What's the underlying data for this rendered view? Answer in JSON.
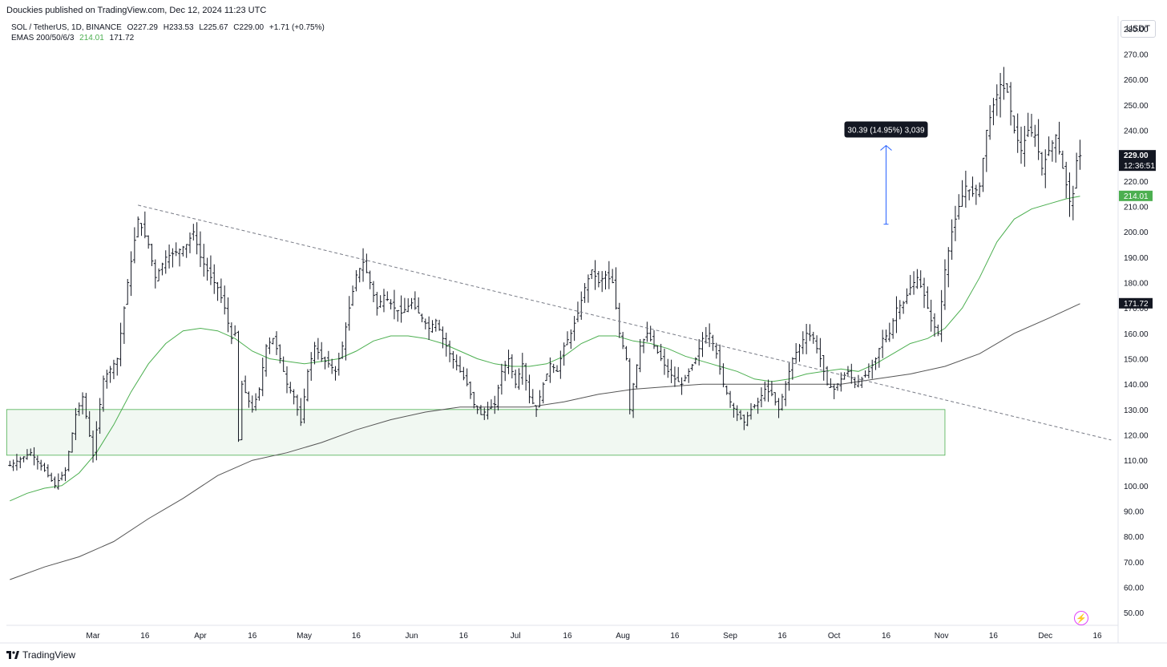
{
  "header": {
    "published_text": "Douckies published on TradingView.com, Dec 12, 2024 11:23 UTC"
  },
  "legend": {
    "symbol": "SOL / TetherUS, 1D, BINANCE",
    "open": "O227.29",
    "high": "H233.53",
    "low": "L225.67",
    "close": "C229.00",
    "change": "+1.71 (+0.75%)",
    "indicator": "EMAS 200/50/6/3",
    "ema_fast_value": "214.01",
    "ema_slow_value": "171.72"
  },
  "currency_button": "USDT",
  "price_labels": {
    "last_price": "229.00",
    "countdown": "12:36:51",
    "ema_fast": "214.01",
    "ema_slow": "171.72"
  },
  "measure_label": "30.39 (14.95%) 3,039",
  "footer": {
    "brand": "TradingView"
  },
  "colors": {
    "candle": "#131722",
    "ema_fast": "#4caf50",
    "ema_slow": "#555555",
    "zone_stroke": "#4caf50",
    "zone_fill": "#f1f8f2",
    "trendline": "#787b86",
    "measure_arrow": "#2962ff",
    "last_price_bg": "#131722",
    "ema_fast_bg": "#4caf50",
    "ema_slow_bg": "#131722"
  },
  "chart_data": {
    "type": "ohlc",
    "title": "SOL / TetherUS, 1D, BINANCE",
    "y_axis": {
      "min": 45,
      "max": 285,
      "ticks": [
        50,
        60,
        70,
        80,
        90,
        100,
        110,
        120,
        130,
        140,
        150,
        160,
        170,
        180,
        190,
        200,
        210,
        220,
        230,
        240,
        250,
        260,
        270,
        280
      ]
    },
    "x_axis": {
      "ticks": [
        {
          "label": "Mar",
          "index": 24
        },
        {
          "label": "16",
          "index": 39
        },
        {
          "label": "Apr",
          "index": 55
        },
        {
          "label": "16",
          "index": 70
        },
        {
          "label": "May",
          "index": 85
        },
        {
          "label": "16",
          "index": 100
        },
        {
          "label": "Jun",
          "index": 116
        },
        {
          "label": "16",
          "index": 131
        },
        {
          "label": "Jul",
          "index": 146
        },
        {
          "label": "16",
          "index": 161
        },
        {
          "label": "Aug",
          "index": 177
        },
        {
          "label": "16",
          "index": 192
        },
        {
          "label": "Sep",
          "index": 208
        },
        {
          "label": "16",
          "index": 223
        },
        {
          "label": "Oct",
          "index": 238
        },
        {
          "label": "16",
          "index": 253
        },
        {
          "label": "Nov",
          "index": 269
        },
        {
          "label": "16",
          "index": 284
        },
        {
          "label": "Dec",
          "index": 299
        },
        {
          "label": "16",
          "index": 314
        }
      ]
    },
    "close_path": [
      [
        0,
        108
      ],
      [
        6,
        113
      ],
      [
        10,
        106
      ],
      [
        13,
        100
      ],
      [
        16,
        106
      ],
      [
        19,
        128
      ],
      [
        21,
        135
      ],
      [
        24,
        112
      ],
      [
        27,
        142
      ],
      [
        31,
        150
      ],
      [
        34,
        180
      ],
      [
        37,
        205
      ],
      [
        40,
        195
      ],
      [
        42,
        182
      ],
      [
        45,
        190
      ],
      [
        48,
        192
      ],
      [
        51,
        195
      ],
      [
        53,
        200
      ],
      [
        55,
        190
      ],
      [
        58,
        182
      ],
      [
        60,
        178
      ],
      [
        62,
        170
      ],
      [
        64,
        158
      ],
      [
        65,
        160
      ],
      [
        66,
        118
      ],
      [
        67,
        140
      ],
      [
        70,
        130
      ],
      [
        72,
        138
      ],
      [
        74,
        155
      ],
      [
        76,
        158
      ],
      [
        78,
        150
      ],
      [
        80,
        140
      ],
      [
        82,
        135
      ],
      [
        84,
        125
      ],
      [
        86,
        145
      ],
      [
        88,
        155
      ],
      [
        90,
        150
      ],
      [
        92,
        148
      ],
      [
        94,
        145
      ],
      [
        96,
        155
      ],
      [
        98,
        170
      ],
      [
        100,
        183
      ],
      [
        102,
        188
      ],
      [
        104,
        180
      ],
      [
        106,
        170
      ],
      [
        108,
        175
      ],
      [
        111,
        170
      ],
      [
        113,
        168
      ],
      [
        116,
        172
      ],
      [
        118,
        168
      ],
      [
        121,
        162
      ],
      [
        123,
        165
      ],
      [
        125,
        158
      ],
      [
        127,
        152
      ],
      [
        130,
        145
      ],
      [
        132,
        140
      ],
      [
        134,
        132
      ],
      [
        136,
        128
      ],
      [
        138,
        130
      ],
      [
        140,
        132
      ],
      [
        142,
        145
      ],
      [
        144,
        150
      ],
      [
        146,
        140
      ],
      [
        148,
        148
      ],
      [
        150,
        135
      ],
      [
        152,
        130
      ],
      [
        154,
        140
      ],
      [
        156,
        148
      ],
      [
        158,
        145
      ],
      [
        160,
        155
      ],
      [
        162,
        160
      ],
      [
        164,
        168
      ],
      [
        166,
        178
      ],
      [
        168,
        185
      ],
      [
        170,
        180
      ],
      [
        172,
        183
      ],
      [
        174,
        180
      ],
      [
        176,
        160
      ],
      [
        178,
        150
      ],
      [
        179,
        130
      ],
      [
        180,
        140
      ],
      [
        182,
        155
      ],
      [
        184,
        160
      ],
      [
        186,
        155
      ],
      [
        188,
        150
      ],
      [
        190,
        145
      ],
      [
        192,
        142
      ],
      [
        194,
        140
      ],
      [
        196,
        145
      ],
      [
        198,
        150
      ],
      [
        200,
        158
      ],
      [
        202,
        160
      ],
      [
        204,
        152
      ],
      [
        206,
        140
      ],
      [
        208,
        133
      ],
      [
        210,
        128
      ],
      [
        212,
        125
      ],
      [
        214,
        130
      ],
      [
        216,
        133
      ],
      [
        218,
        138
      ],
      [
        220,
        136
      ],
      [
        222,
        130
      ],
      [
        224,
        140
      ],
      [
        226,
        150
      ],
      [
        228,
        155
      ],
      [
        230,
        160
      ],
      [
        232,
        158
      ],
      [
        234,
        150
      ],
      [
        236,
        140
      ],
      [
        238,
        138
      ],
      [
        240,
        142
      ],
      [
        242,
        145
      ],
      [
        244,
        140
      ],
      [
        246,
        142
      ],
      [
        248,
        145
      ],
      [
        250,
        150
      ],
      [
        252,
        158
      ],
      [
        254,
        160
      ],
      [
        256,
        170
      ],
      [
        258,
        172
      ],
      [
        260,
        178
      ],
      [
        262,
        182
      ],
      [
        264,
        175
      ],
      [
        266,
        165
      ],
      [
        268,
        160
      ],
      [
        270,
        185
      ],
      [
        272,
        200
      ],
      [
        274,
        210
      ],
      [
        276,
        218
      ],
      [
        278,
        215
      ],
      [
        280,
        218
      ],
      [
        282,
        240
      ],
      [
        284,
        250
      ],
      [
        286,
        258
      ],
      [
        288,
        255
      ],
      [
        290,
        240
      ],
      [
        292,
        232
      ],
      [
        294,
        240
      ],
      [
        296,
        238
      ],
      [
        298,
        225
      ],
      [
        300,
        232
      ],
      [
        302,
        238
      ],
      [
        304,
        225
      ],
      [
        306,
        212
      ],
      [
        307,
        215
      ],
      [
        308,
        228
      ],
      [
        309,
        230
      ]
    ],
    "ema_fast": {
      "name": "EMA",
      "points": [
        [
          0,
          94
        ],
        [
          5,
          97
        ],
        [
          10,
          99
        ],
        [
          15,
          100
        ],
        [
          20,
          105
        ],
        [
          25,
          113
        ],
        [
          30,
          124
        ],
        [
          35,
          137
        ],
        [
          40,
          148
        ],
        [
          45,
          156
        ],
        [
          50,
          161
        ],
        [
          55,
          162
        ],
        [
          60,
          161
        ],
        [
          65,
          158
        ],
        [
          70,
          153
        ],
        [
          75,
          150
        ],
        [
          80,
          149
        ],
        [
          85,
          148
        ],
        [
          90,
          149
        ],
        [
          95,
          150
        ],
        [
          100,
          153
        ],
        [
          105,
          157
        ],
        [
          110,
          159
        ],
        [
          115,
          159
        ],
        [
          120,
          158
        ],
        [
          125,
          156
        ],
        [
          130,
          153
        ],
        [
          135,
          150
        ],
        [
          140,
          148
        ],
        [
          145,
          147
        ],
        [
          150,
          147
        ],
        [
          155,
          148
        ],
        [
          160,
          151
        ],
        [
          165,
          156
        ],
        [
          170,
          159
        ],
        [
          175,
          159
        ],
        [
          180,
          157
        ],
        [
          185,
          156
        ],
        [
          190,
          154
        ],
        [
          195,
          151
        ],
        [
          200,
          149
        ],
        [
          205,
          147
        ],
        [
          210,
          145
        ],
        [
          215,
          142
        ],
        [
          220,
          141
        ],
        [
          225,
          142
        ],
        [
          230,
          144
        ],
        [
          235,
          145
        ],
        [
          240,
          146
        ],
        [
          245,
          145
        ],
        [
          250,
          148
        ],
        [
          255,
          152
        ],
        [
          260,
          156
        ],
        [
          265,
          158
        ],
        [
          270,
          162
        ],
        [
          275,
          170
        ],
        [
          280,
          182
        ],
        [
          285,
          196
        ],
        [
          290,
          205
        ],
        [
          295,
          209
        ],
        [
          300,
          211
        ],
        [
          305,
          213
        ],
        [
          309,
          214
        ]
      ]
    },
    "ema_slow": {
      "name": "EMA",
      "points": [
        [
          0,
          63
        ],
        [
          10,
          68
        ],
        [
          20,
          72
        ],
        [
          30,
          78
        ],
        [
          40,
          87
        ],
        [
          50,
          95
        ],
        [
          60,
          104
        ],
        [
          70,
          110
        ],
        [
          80,
          113
        ],
        [
          90,
          117
        ],
        [
          100,
          122
        ],
        [
          110,
          126
        ],
        [
          120,
          129
        ],
        [
          130,
          131
        ],
        [
          140,
          131
        ],
        [
          150,
          131
        ],
        [
          160,
          133
        ],
        [
          170,
          136
        ],
        [
          180,
          138
        ],
        [
          190,
          139
        ],
        [
          200,
          140
        ],
        [
          210,
          140
        ],
        [
          220,
          140
        ],
        [
          230,
          140
        ],
        [
          240,
          140
        ],
        [
          250,
          142
        ],
        [
          260,
          144
        ],
        [
          270,
          147
        ],
        [
          280,
          152
        ],
        [
          290,
          160
        ],
        [
          300,
          166
        ],
        [
          309,
          171.7
        ]
      ]
    },
    "zone": {
      "x_start": 0,
      "x_end": 270,
      "y_low": 112,
      "y_high": 130
    },
    "trendline": {
      "points": [
        [
          37,
          210.5
        ],
        [
          318,
          118
        ]
      ]
    },
    "measure": {
      "index": 253,
      "from": 203,
      "to": 234
    }
  }
}
